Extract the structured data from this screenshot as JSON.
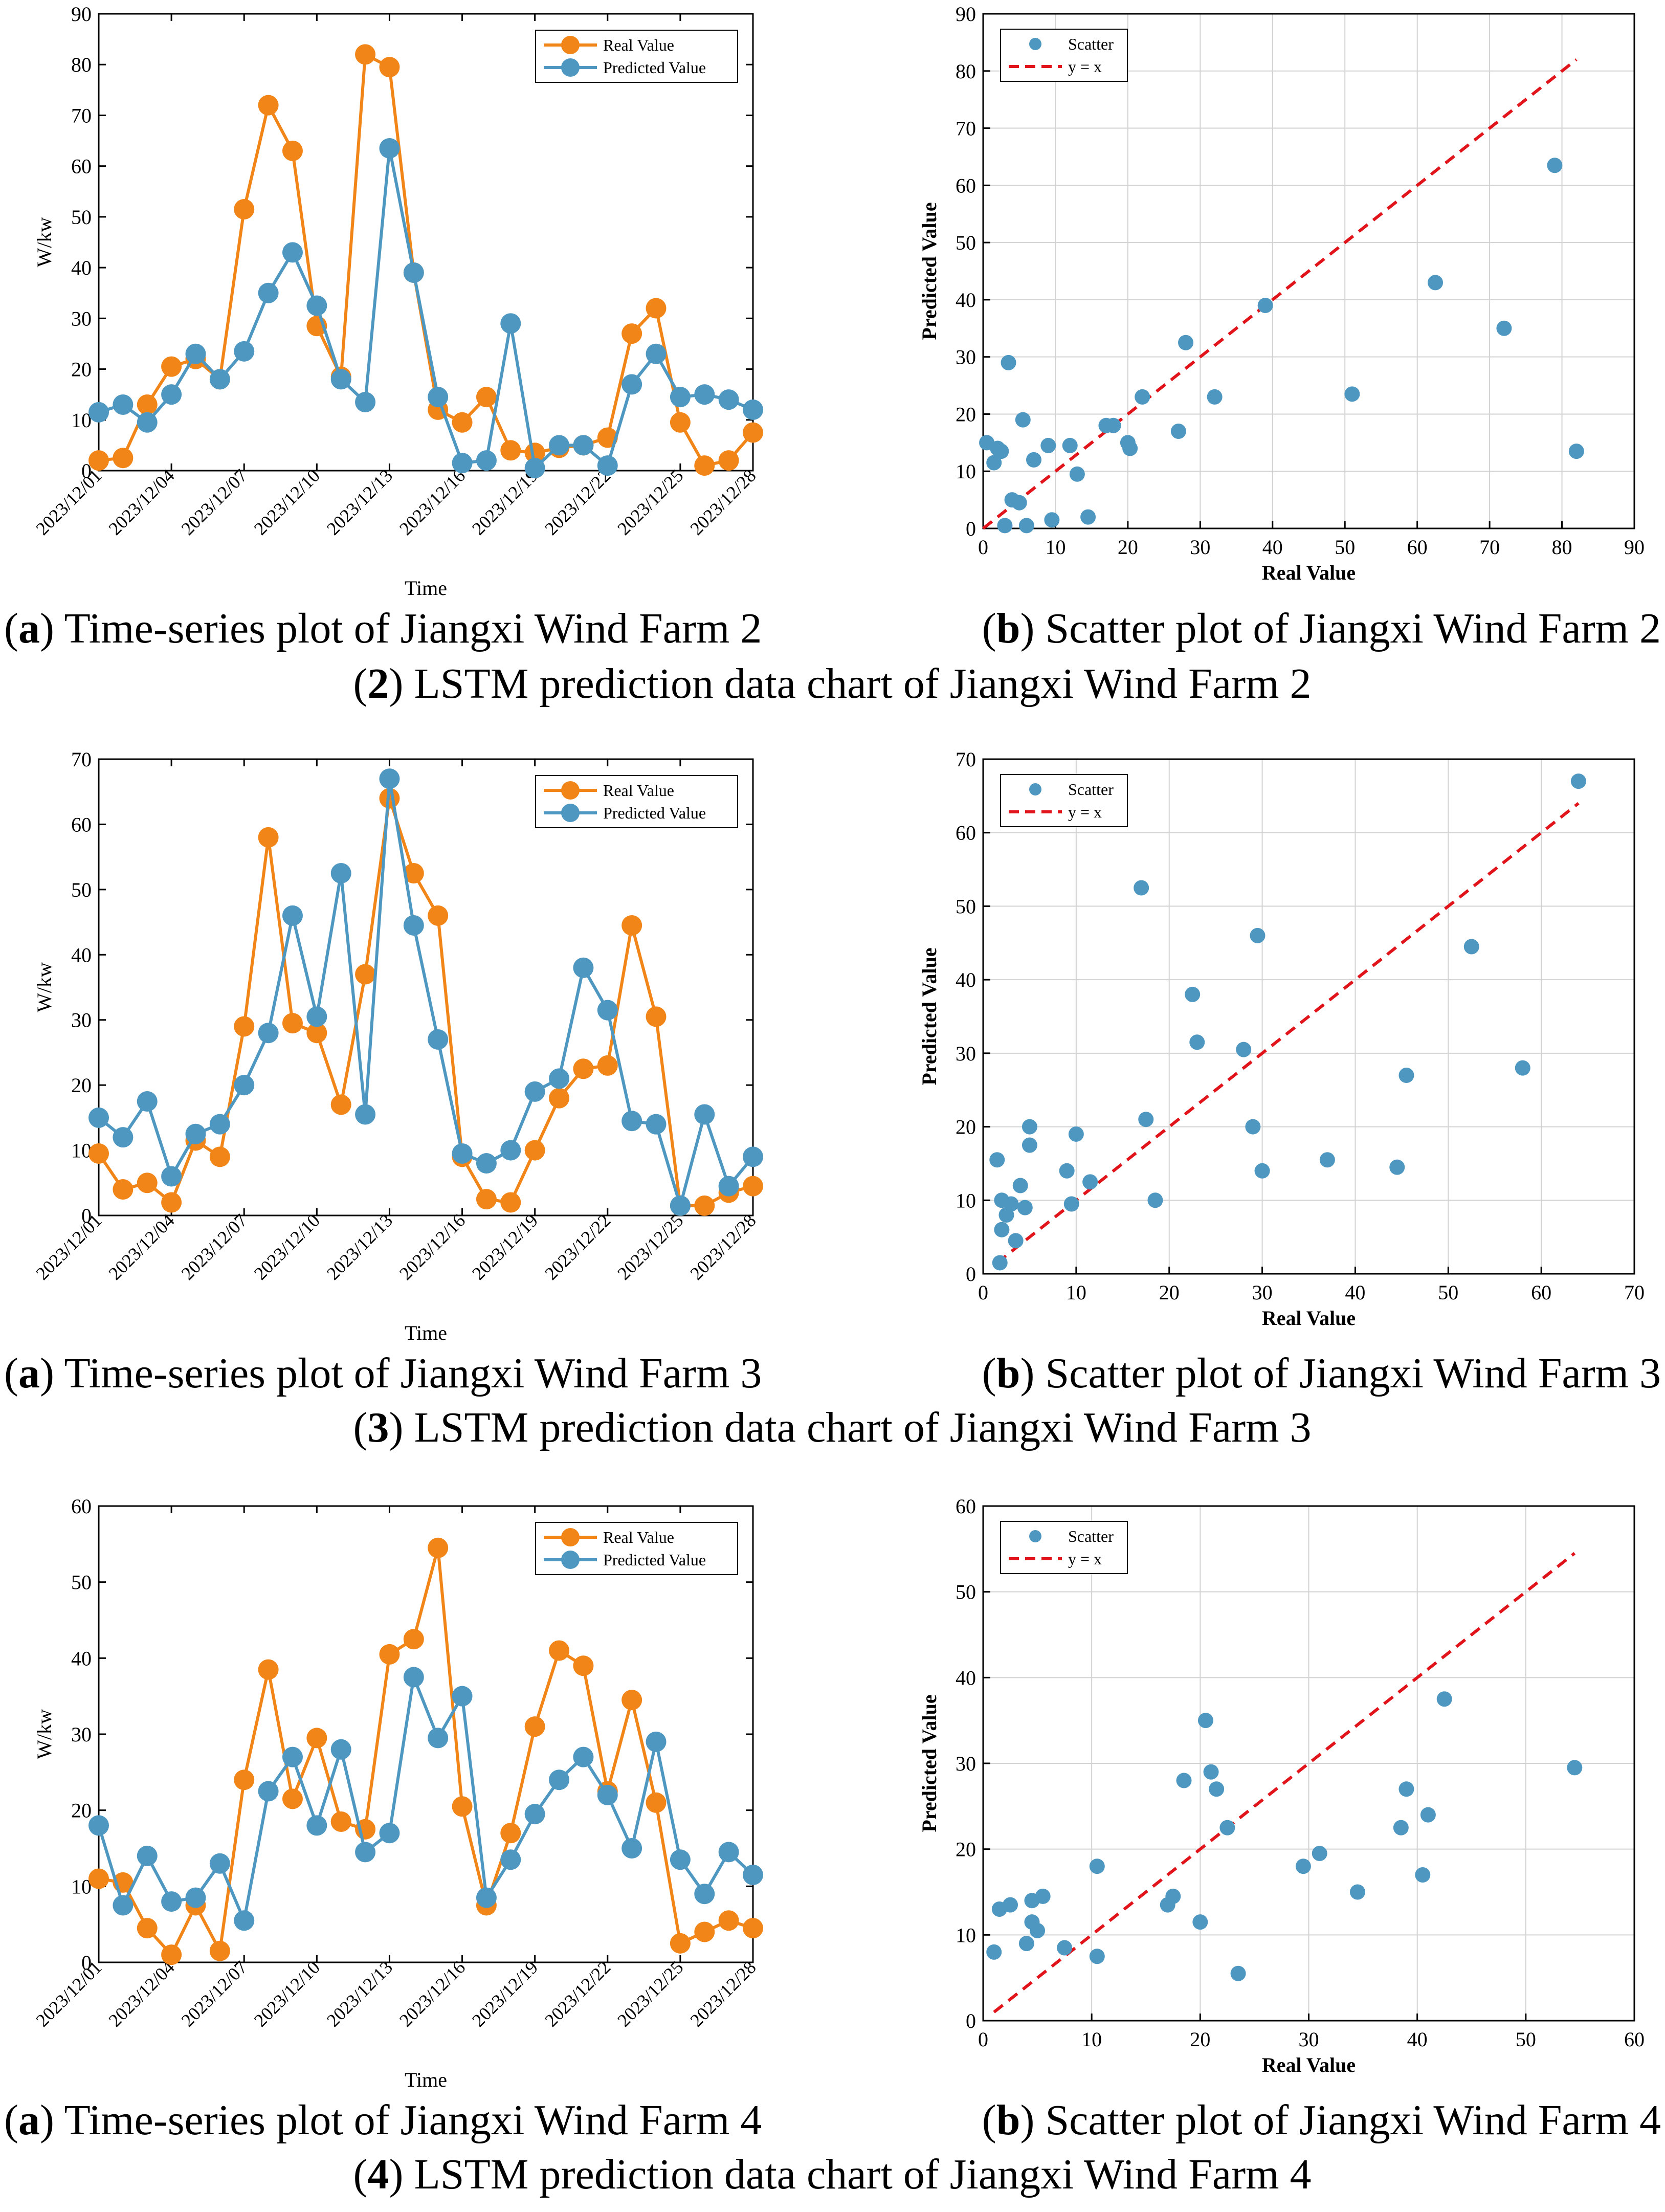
{
  "colors": {
    "real": "#F28518",
    "predicted": "#4E97C1",
    "identity": "#E0141A",
    "grid": "#D2D2D2"
  },
  "rows": [
    {
      "captions": {
        "a_letter": "a",
        "a_text": "Time-series plot of Jiangxi Wind Farm 2",
        "b_letter": "b",
        "b_text": "Scatter plot of Jiangxi Wind Farm 2",
        "group_num": "2",
        "group_text": "LSTM prediction data chart of Jiangxi Wind Farm 2"
      }
    },
    {
      "captions": {
        "a_letter": "a",
        "a_text": "Time-series plot of Jiangxi Wind Farm 3",
        "b_letter": "b",
        "b_text": "Scatter plot of Jiangxi Wind Farm 3",
        "group_num": "3",
        "group_text": "LSTM prediction data chart of Jiangxi Wind Farm 3"
      }
    },
    {
      "captions": {
        "a_letter": "a",
        "a_text": "Time-series plot of Jiangxi Wind Farm 4",
        "b_letter": "b",
        "b_text": "Scatter plot of Jiangxi Wind Farm 4",
        "group_num": "4",
        "group_text": "LSTM prediction data chart of Jiangxi Wind Farm 4"
      }
    }
  ],
  "chart_data": [
    {
      "type": "line",
      "id": "ts2",
      "title": "",
      "xlabel": "Time",
      "ylabel": "W/kw",
      "ylim": [
        0,
        90
      ],
      "yticks": [
        0,
        10,
        20,
        30,
        40,
        50,
        60,
        70,
        80,
        90
      ],
      "grid": false,
      "legend": "top-right",
      "categories": [
        "2023/12/01",
        "2023/12/02",
        "2023/12/03",
        "2023/12/04",
        "2023/12/05",
        "2023/12/06",
        "2023/12/07",
        "2023/12/08",
        "2023/12/09",
        "2023/12/10",
        "2023/12/11",
        "2023/12/12",
        "2023/12/13",
        "2023/12/14",
        "2023/12/15",
        "2023/12/16",
        "2023/12/17",
        "2023/12/18",
        "2023/12/19",
        "2023/12/20",
        "2023/12/21",
        "2023/12/22",
        "2023/12/23",
        "2023/12/24",
        "2023/12/25",
        "2023/12/26",
        "2023/12/27",
        "2023/12/28"
      ],
      "xtick_labels": [
        "2023/12/01",
        "2023/12/04",
        "2023/12/07",
        "2023/12/10",
        "2023/12/13",
        "2023/12/16",
        "2023/12/19",
        "2023/12/22",
        "2023/12/25",
        "2023/12/28"
      ],
      "series": [
        {
          "name": "Real Value",
          "values": [
            2,
            2.5,
            13,
            20.5,
            22,
            18,
            51.5,
            72,
            63,
            28.5,
            18.5,
            82,
            79.5,
            39,
            12,
            9.5,
            14.5,
            4,
            3.5,
            4.5,
            5,
            6.5,
            27,
            32,
            9.5,
            1,
            2,
            7.5
          ]
        },
        {
          "name": "Predicted Value",
          "values": [
            11.5,
            13,
            9.5,
            15,
            23,
            18,
            23.5,
            35,
            43,
            32.5,
            18,
            13.5,
            63.5,
            39,
            14.5,
            1.5,
            2,
            29,
            0.5,
            5,
            5,
            1,
            17,
            23,
            14.5,
            15,
            14,
            12
          ]
        }
      ]
    },
    {
      "type": "scatter",
      "id": "sc2",
      "title": "",
      "xlabel": "Real Value",
      "ylabel": "Predicted Value",
      "xlim": [
        0,
        90
      ],
      "ylim": [
        0,
        90
      ],
      "xticks": [
        0,
        10,
        20,
        30,
        40,
        50,
        60,
        70,
        80,
        90
      ],
      "yticks": [
        0,
        10,
        20,
        30,
        40,
        50,
        60,
        70,
        80,
        90
      ],
      "grid": true,
      "legend": "top-left",
      "identity_range": [
        0,
        82
      ],
      "series": [
        {
          "name": "Scatter",
          "x": [
            0.5,
            1.5,
            2,
            2.5,
            3,
            3.5,
            4,
            5,
            5.5,
            6,
            7,
            9,
            9.5,
            12,
            13,
            14.5,
            17,
            18,
            20,
            20.3,
            22,
            27,
            28,
            32,
            39,
            51,
            62.5,
            72,
            79,
            82
          ],
          "y": [
            15,
            11.5,
            14,
            13.5,
            0.5,
            29,
            5,
            4.5,
            19,
            0.5,
            12,
            14.5,
            1.5,
            14.5,
            9.5,
            2,
            18,
            18,
            15,
            14,
            23,
            17,
            32.5,
            23,
            39,
            23.5,
            43,
            35,
            63.5,
            13.5
          ]
        },
        {
          "name": "y = x",
          "x": [
            0,
            82
          ],
          "y": [
            0,
            82
          ]
        }
      ]
    },
    {
      "type": "line",
      "id": "ts3",
      "title": "",
      "xlabel": "Time",
      "ylabel": "W/kw",
      "ylim": [
        0,
        70
      ],
      "yticks": [
        0,
        10,
        20,
        30,
        40,
        50,
        60,
        70
      ],
      "grid": false,
      "legend": "top-right",
      "categories": [
        "2023/12/01",
        "2023/12/02",
        "2023/12/03",
        "2023/12/04",
        "2023/12/05",
        "2023/12/06",
        "2023/12/07",
        "2023/12/08",
        "2023/12/09",
        "2023/12/10",
        "2023/12/11",
        "2023/12/12",
        "2023/12/13",
        "2023/12/14",
        "2023/12/15",
        "2023/12/16",
        "2023/12/17",
        "2023/12/18",
        "2023/12/19",
        "2023/12/20",
        "2023/12/21",
        "2023/12/22",
        "2023/12/23",
        "2023/12/24",
        "2023/12/25",
        "2023/12/26",
        "2023/12/27",
        "2023/12/28"
      ],
      "xtick_labels": [
        "2023/12/01",
        "2023/12/04",
        "2023/12/07",
        "2023/12/10",
        "2023/12/13",
        "2023/12/16",
        "2023/12/19",
        "2023/12/22",
        "2023/12/25",
        "2023/12/28"
      ],
      "series": [
        {
          "name": "Real Value",
          "values": [
            9.5,
            4,
            5,
            2,
            11.5,
            9,
            29,
            58,
            29.5,
            28,
            17,
            37,
            64,
            52.5,
            46,
            9,
            2.5,
            2,
            10,
            18,
            22.5,
            23,
            44.5,
            30.5,
            1.5,
            1.5,
            3.5,
            4.5
          ]
        },
        {
          "name": "Predicted Value",
          "values": [
            15,
            12,
            17.5,
            6,
            12.5,
            14,
            20,
            28,
            46,
            30.5,
            52.5,
            15.5,
            67,
            44.5,
            27,
            9.5,
            8,
            10,
            19,
            21,
            38,
            31.5,
            14.5,
            14,
            1.5,
            15.5,
            4.5,
            9
          ]
        }
      ]
    },
    {
      "type": "scatter",
      "id": "sc3",
      "title": "",
      "xlabel": "Real Value",
      "ylabel": "Predicted Value",
      "xlim": [
        0,
        70
      ],
      "ylim": [
        0,
        70
      ],
      "xticks": [
        0,
        10,
        20,
        30,
        40,
        50,
        60,
        70
      ],
      "yticks": [
        0,
        10,
        20,
        30,
        40,
        50,
        60,
        70
      ],
      "grid": true,
      "legend": "top-left",
      "identity_range": [
        1.5,
        64
      ],
      "series": [
        {
          "name": "Scatter",
          "x": [
            1.5,
            1.8,
            2,
            2,
            2.5,
            3,
            3.5,
            4,
            4.5,
            5,
            5,
            9,
            9.5,
            10,
            11.5,
            17,
            17.5,
            18.5,
            22.5,
            23,
            28,
            29,
            29.5,
            30,
            37,
            44.5,
            45.5,
            52.5,
            58,
            64
          ],
          "y": [
            15.5,
            1.5,
            6,
            10,
            8,
            9.5,
            4.5,
            12,
            9,
            17.5,
            20,
            14,
            9.5,
            19,
            12.5,
            52.5,
            21,
            10,
            38,
            31.5,
            30.5,
            20,
            46,
            14,
            15.5,
            14.5,
            27,
            44.5,
            28,
            67
          ]
        },
        {
          "name": "y = x",
          "x": [
            1.5,
            64
          ],
          "y": [
            1.5,
            64
          ]
        }
      ]
    },
    {
      "type": "line",
      "id": "ts4",
      "title": "",
      "xlabel": "Time",
      "ylabel": "W/kw",
      "ylim": [
        0,
        60
      ],
      "yticks": [
        0,
        10,
        20,
        30,
        40,
        50,
        60
      ],
      "grid": false,
      "legend": "top-right",
      "categories": [
        "2023/12/01",
        "2023/12/02",
        "2023/12/03",
        "2023/12/04",
        "2023/12/05",
        "2023/12/06",
        "2023/12/07",
        "2023/12/08",
        "2023/12/09",
        "2023/12/10",
        "2023/12/11",
        "2023/12/12",
        "2023/12/13",
        "2023/12/14",
        "2023/12/15",
        "2023/12/16",
        "2023/12/17",
        "2023/12/18",
        "2023/12/19",
        "2023/12/20",
        "2023/12/21",
        "2023/12/22",
        "2023/12/23",
        "2023/12/24",
        "2023/12/25",
        "2023/12/26",
        "2023/12/27",
        "2023/12/28"
      ],
      "xtick_labels": [
        "2023/12/01",
        "2023/12/04",
        "2023/12/07",
        "2023/12/10",
        "2023/12/13",
        "2023/12/16",
        "2023/12/19",
        "2023/12/22",
        "2023/12/25",
        "2023/12/28"
      ],
      "series": [
        {
          "name": "Real Value",
          "values": [
            11,
            10.5,
            4.5,
            1,
            7.5,
            1.5,
            24,
            38.5,
            21.5,
            29.5,
            18.5,
            17.5,
            40.5,
            42.5,
            54.5,
            20.5,
            7.5,
            17,
            31,
            41,
            39,
            22.5,
            34.5,
            21,
            2.5,
            4,
            5.5,
            4.5
          ]
        },
        {
          "name": "Predicted Value",
          "values": [
            18,
            7.5,
            14,
            8,
            8.5,
            13,
            5.5,
            22.5,
            27,
            18,
            28,
            14.5,
            17,
            37.5,
            29.5,
            35,
            8.5,
            13.5,
            19.5,
            24,
            27,
            22,
            15,
            29,
            13.5,
            9,
            14.5,
            11.5
          ]
        }
      ]
    },
    {
      "type": "scatter",
      "id": "sc4",
      "title": "",
      "xlabel": "Real Value",
      "ylabel": "Predicted Value",
      "xlim": [
        0,
        60
      ],
      "ylim": [
        0,
        60
      ],
      "xticks": [
        0,
        10,
        20,
        30,
        40,
        50,
        60
      ],
      "yticks": [
        0,
        10,
        20,
        30,
        40,
        50,
        60
      ],
      "grid": true,
      "legend": "top-left",
      "identity_range": [
        1,
        54.5
      ],
      "series": [
        {
          "name": "Scatter",
          "x": [
            1,
            1.5,
            2.5,
            4,
            4.5,
            4.5,
            5,
            5.5,
            7.5,
            10.5,
            10.5,
            17,
            17.5,
            18.5,
            20,
            20.5,
            21,
            21.5,
            22.5,
            23.5,
            29.5,
            31,
            34.5,
            38.5,
            39,
            40.5,
            41,
            42.5,
            54.5
          ],
          "y": [
            8,
            13,
            13.5,
            9,
            11.5,
            14,
            10.5,
            14.5,
            8.5,
            7.5,
            18,
            13.5,
            14.5,
            28,
            11.5,
            35,
            29,
            27,
            22.5,
            5.5,
            18,
            19.5,
            15,
            22.5,
            27,
            17,
            24,
            37.5,
            29.5
          ]
        },
        {
          "name": "y = x",
          "x": [
            1,
            54.5
          ],
          "y": [
            1,
            54.5
          ]
        }
      ]
    }
  ]
}
